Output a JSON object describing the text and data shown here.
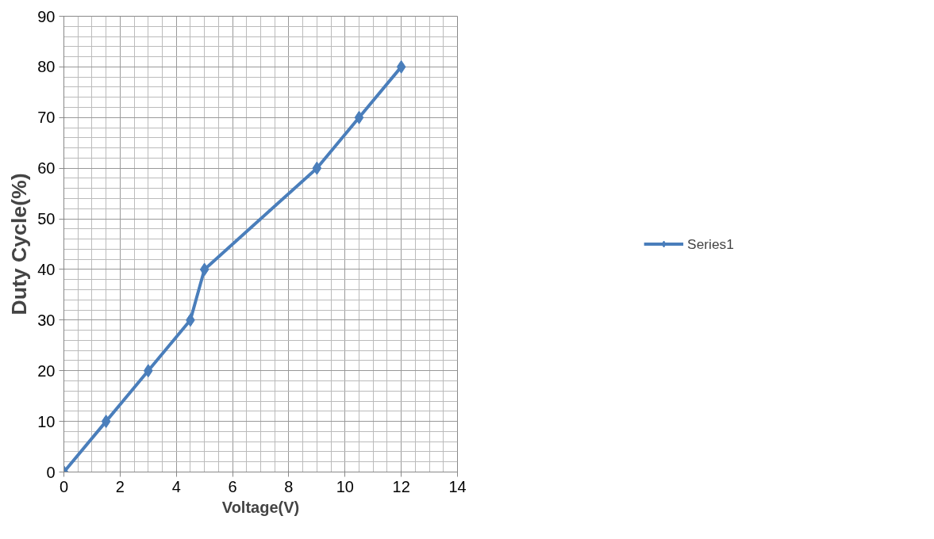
{
  "chart_data": {
    "type": "line",
    "xlabel": "Voltage(V)",
    "ylabel": "Duty Cycle(%)",
    "x": [
      0,
      1.5,
      3,
      4.5,
      5,
      9,
      10.5,
      12
    ],
    "series": [
      {
        "name": "Series1",
        "color": "#4a7ebb",
        "values": [
          0,
          10,
          20,
          30,
          40,
          60,
          70,
          80
        ]
      }
    ],
    "xlim": [
      0,
      14
    ],
    "xticks": [
      0,
      2,
      4,
      6,
      8,
      10,
      12,
      14
    ],
    "ylim": [
      0,
      90
    ],
    "yticks": [
      0,
      10,
      20,
      30,
      40,
      50,
      60,
      70,
      80,
      90
    ],
    "grid": true,
    "legend": "right",
    "marker": "diamond",
    "line_style": "solid"
  }
}
